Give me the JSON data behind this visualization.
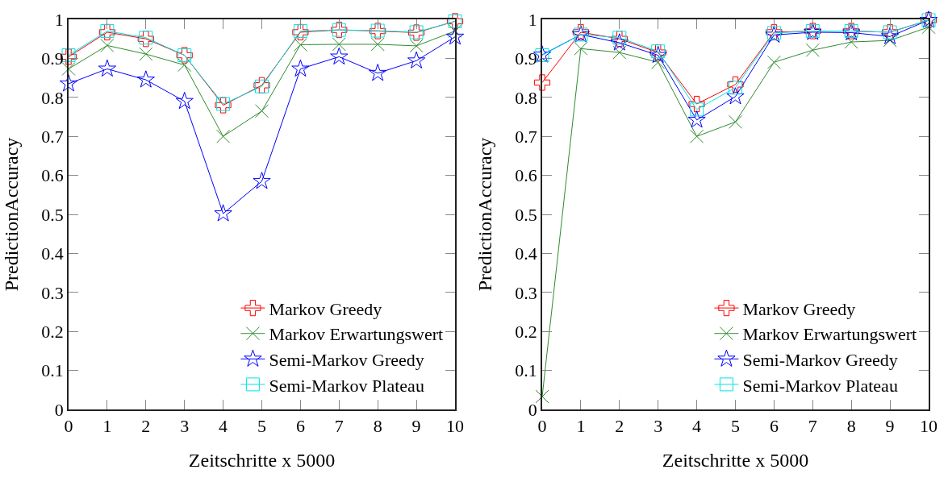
{
  "chart_data": [
    {
      "type": "line",
      "xlabel": "Zeitschritte x 5000",
      "ylabel": "PredictionAccuracy",
      "x": [
        0,
        1,
        2,
        3,
        4,
        5,
        6,
        7,
        8,
        9,
        10
      ],
      "xlim": [
        0,
        10
      ],
      "xticks": [
        0,
        1,
        2,
        3,
        4,
        5,
        6,
        7,
        8,
        9,
        10
      ],
      "ylim": [
        0,
        1
      ],
      "yticks": [
        0,
        0.1,
        0.2,
        0.3,
        0.4,
        0.5,
        0.6,
        0.7,
        0.8,
        0.9,
        1
      ],
      "grid": false,
      "legend": "bottom right",
      "series": [
        {
          "name": "Markov Greedy",
          "color": "#ff0000",
          "marker": "cross",
          "values": [
            0.904,
            0.967,
            0.95,
            0.908,
            0.78,
            0.831,
            0.967,
            0.973,
            0.97,
            0.966,
            0.995
          ]
        },
        {
          "name": "Markov Erwartungswert",
          "color": "#2e8b2e",
          "marker": "x",
          "values": [
            0.873,
            0.933,
            0.911,
            0.883,
            0.7,
            0.765,
            0.935,
            0.936,
            0.936,
            0.932,
            0.97
          ]
        },
        {
          "name": "Semi-Markov Greedy",
          "color": "#0000ff",
          "marker": "star",
          "values": [
            0.835,
            0.873,
            0.845,
            0.79,
            0.502,
            0.585,
            0.873,
            0.904,
            0.862,
            0.894,
            0.955
          ]
        },
        {
          "name": "Semi-Markov Plateau",
          "color": "#00e5e5",
          "marker": "square",
          "values": [
            0.908,
            0.97,
            0.953,
            0.908,
            0.783,
            0.828,
            0.97,
            0.973,
            0.971,
            0.967,
            0.995
          ]
        }
      ]
    },
    {
      "type": "line",
      "xlabel": "Zeitschritte x 5000",
      "ylabel": "PredictionAccuracy",
      "x": [
        0,
        1,
        2,
        3,
        4,
        5,
        6,
        7,
        8,
        9,
        10
      ],
      "xlim": [
        0,
        10
      ],
      "xticks": [
        0,
        1,
        2,
        3,
        4,
        5,
        6,
        7,
        8,
        9,
        10
      ],
      "ylim": [
        0,
        1
      ],
      "yticks": [
        0,
        0.1,
        0.2,
        0.3,
        0.4,
        0.5,
        0.6,
        0.7,
        0.8,
        0.9,
        1
      ],
      "grid": false,
      "legend": "bottom right",
      "series": [
        {
          "name": "Markov Greedy",
          "color": "#ff0000",
          "marker": "cross",
          "values": [
            0.838,
            0.967,
            0.95,
            0.915,
            0.783,
            0.833,
            0.967,
            0.97,
            0.97,
            0.967,
            0.998
          ]
        },
        {
          "name": "Markov Erwartungswert",
          "color": "#2e8b2e",
          "marker": "x",
          "values": [
            0.033,
            0.925,
            0.915,
            0.89,
            0.7,
            0.737,
            0.89,
            0.921,
            0.942,
            0.946,
            0.98
          ]
        },
        {
          "name": "Semi-Markov Greedy",
          "color": "#0000ff",
          "marker": "star",
          "values": [
            0.909,
            0.961,
            0.94,
            0.908,
            0.742,
            0.802,
            0.96,
            0.967,
            0.966,
            0.956,
            0.998
          ]
        },
        {
          "name": "Semi-Markov Plateau",
          "color": "#00e5e5",
          "marker": "square",
          "values": [
            0.908,
            0.961,
            0.953,
            0.918,
            0.769,
            0.825,
            0.965,
            0.97,
            0.97,
            0.967,
            0.998
          ]
        }
      ]
    }
  ]
}
